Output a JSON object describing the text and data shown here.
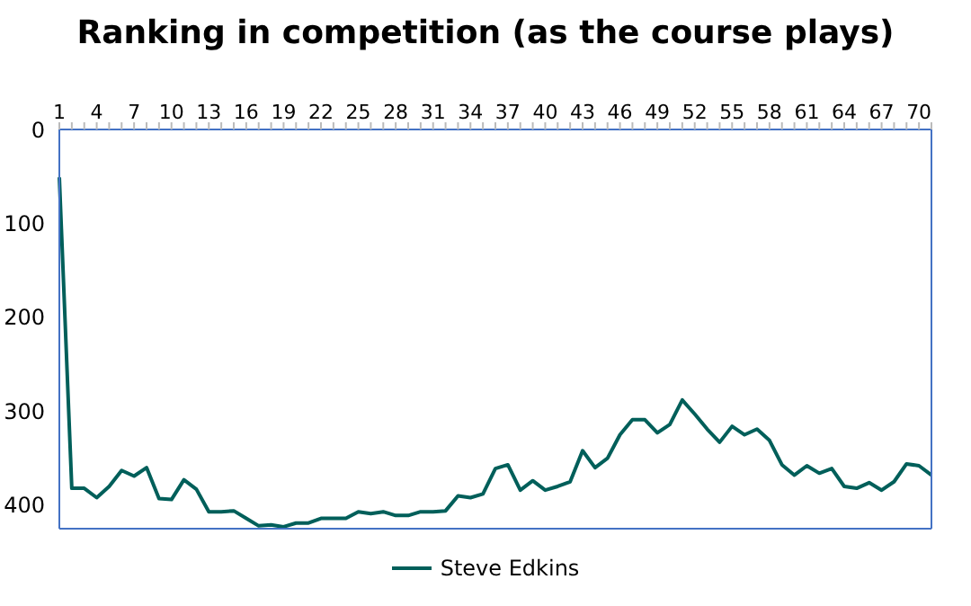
{
  "chart_data": {
    "type": "line",
    "title": "Ranking in competition (as the course plays)",
    "categories": [
      "1",
      null,
      null,
      "4",
      null,
      null,
      "7",
      null,
      null,
      "10",
      null,
      null,
      "13",
      null,
      null,
      "16",
      null,
      null,
      "19",
      null,
      null,
      "22",
      null,
      null,
      "25",
      null,
      null,
      "28",
      null,
      null,
      "31",
      null,
      null,
      "34",
      null,
      null,
      "37",
      null,
      null,
      "40",
      null,
      null,
      "43",
      null,
      null,
      "46",
      null,
      null,
      "49",
      null,
      null,
      "52",
      null,
      null,
      "55",
      null,
      null,
      "58",
      null,
      null,
      "61",
      null,
      null,
      "64",
      null,
      null,
      "67",
      null,
      null,
      "70",
      null
    ],
    "series": [
      {
        "name": "Steve Edkins",
        "color": "#005f5a",
        "values": [
          51,
          382,
          382,
          392,
          380,
          363,
          369,
          360,
          393,
          394,
          373,
          383,
          407,
          407,
          406,
          414,
          422,
          421,
          423,
          419,
          419,
          414,
          414,
          414,
          407,
          409,
          407,
          411,
          411,
          407,
          407,
          406,
          390,
          392,
          388,
          361,
          357,
          384,
          374,
          384,
          380,
          375,
          342,
          360,
          350,
          325,
          309,
          309,
          323,
          314,
          288,
          303,
          319,
          333,
          316,
          325,
          319,
          331,
          357,
          368,
          358,
          366,
          361,
          380,
          382,
          376,
          384,
          375,
          356,
          358,
          368
        ]
      }
    ],
    "ylim": [
      425,
      0
    ],
    "yticks": [
      0,
      100,
      200,
      300,
      400
    ],
    "grid": false,
    "legend": "bottom",
    "marker": "none",
    "line_style": "solid"
  }
}
